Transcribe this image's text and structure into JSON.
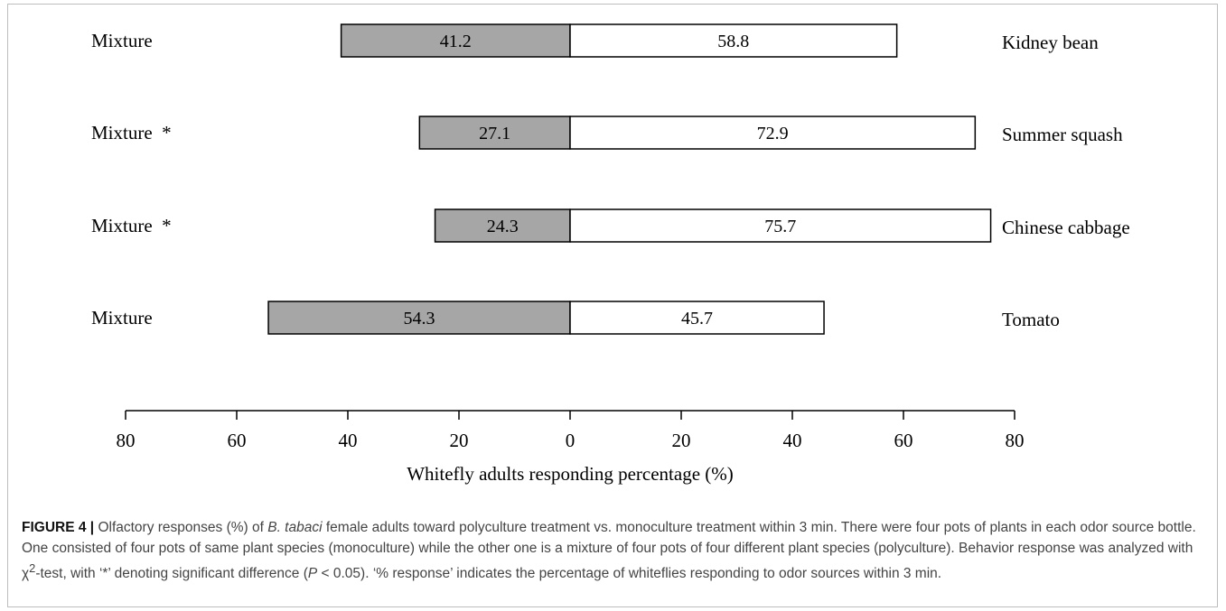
{
  "chart_data": {
    "type": "bar",
    "orientation": "horizontal-diverging",
    "categories": [
      "Kidney bean",
      "Summer squash",
      "Chinese cabbage",
      "Tomato"
    ],
    "series": [
      {
        "name": "Mixture",
        "values": [
          41.2,
          27.1,
          24.3,
          54.3
        ],
        "color": "#a6a6a6",
        "direction": "left"
      },
      {
        "name": "Monoculture",
        "values": [
          58.8,
          72.9,
          75.7,
          45.7
        ],
        "color": "#ffffff",
        "direction": "right"
      }
    ],
    "left_labels": [
      "Mixture",
      "Mixture  *",
      "Mixture  *",
      "Mixture"
    ],
    "xlim": [
      -80,
      80
    ],
    "ticks": [
      -80,
      -60,
      -40,
      -20,
      0,
      20,
      40,
      60,
      80
    ],
    "tick_labels": [
      "80",
      "60",
      "40",
      "20",
      "0",
      "20",
      "40",
      "60",
      "80"
    ],
    "xlabel": "Whitefly adults responding percentage (%)",
    "grid": false
  },
  "caption": {
    "label": "FIGURE 4 |",
    "t1": " Olfactory responses (%) of ",
    "species": "B. tabaci",
    "t2": " female adults toward polyculture treatment vs. monoculture treatment within 3 min. There were four pots of plants in each odor source bottle. One consisted of four pots of same plant species (monoculture) while the other one is a mixture of four pots of four different plant species (polyculture). Behavior response was analyzed with χ",
    "sup": "2",
    "t3": "-test, with ‘*’ denoting significant difference (",
    "p": "P",
    "t4": " < 0.05). ‘% response’ indicates the percentage of whiteflies responding to odor sources within 3 min."
  }
}
